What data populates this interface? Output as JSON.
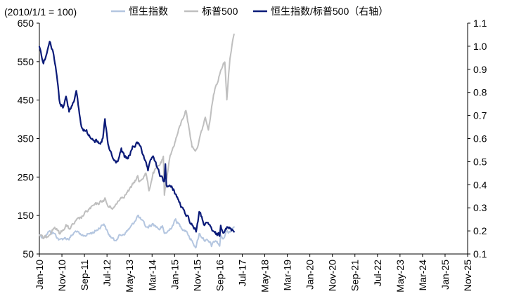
{
  "chart_data": {
    "type": "line",
    "subtitle": "(2010/1/1 = 100)",
    "x_categories": [
      "Jan-10",
      "Nov-10",
      "Sep-11",
      "Jul-12",
      "May-13",
      "Mar-14",
      "Jan-15",
      "Nov-15",
      "Sep-16",
      "Jul-17",
      "May-18",
      "Mar-19",
      "Jan-20",
      "Nov-20",
      "Sep-21",
      "Jul-22",
      "May-23",
      "Mar-24",
      "Jan-25",
      "Nov-25"
    ],
    "y_left": {
      "ticks": [
        50,
        150,
        250,
        350,
        450,
        550,
        650
      ],
      "range": [
        50,
        650
      ]
    },
    "y_right": {
      "ticks": [
        0.1,
        0.2,
        0.3,
        0.4,
        0.5,
        0.6,
        0.7,
        0.8,
        0.9,
        1.0,
        1.1
      ],
      "range": [
        0.1,
        1.1
      ]
    },
    "legend": {
      "position": "top",
      "entries": [
        "恒生指数",
        "标普500",
        "恒生指数/标普500（右轴）"
      ]
    },
    "colors": {
      "hsi": "#b4c6e0",
      "spx": "#bfbfbf",
      "ratio": "#0a1a78"
    },
    "series": [
      {
        "name": "恒生指数",
        "axis": "left",
        "points": [
          [
            "2010-01",
            100
          ],
          [
            "2010-05",
            93
          ],
          [
            "2010-10",
            108
          ],
          [
            "2011-03",
            105
          ],
          [
            "2011-09",
            85
          ],
          [
            "2012-01",
            92
          ],
          [
            "2012-06",
            90
          ],
          [
            "2013-01",
            110
          ],
          [
            "2013-06",
            95
          ],
          [
            "2014-01",
            102
          ],
          [
            "2014-06",
            107
          ],
          [
            "2014-09",
            112
          ],
          [
            "2015-04",
            130
          ],
          [
            "2015-08",
            103
          ],
          [
            "2016-02",
            85
          ],
          [
            "2016-06",
            95
          ],
          [
            "2017-01",
            105
          ],
          [
            "2017-07",
            122
          ],
          [
            "2018-01",
            150
          ],
          [
            "2018-10",
            118
          ],
          [
            "2019-04",
            128
          ],
          [
            "2019-10",
            115
          ],
          [
            "2020-01",
            120
          ],
          [
            "2020-03",
            102
          ],
          [
            "2020-08",
            112
          ],
          [
            "2021-02",
            139
          ],
          [
            "2021-07",
            120
          ],
          [
            "2022-01",
            110
          ],
          [
            "2022-03",
            95
          ],
          [
            "2022-10",
            68
          ],
          [
            "2023-01",
            103
          ],
          [
            "2023-06",
            88
          ],
          [
            "2023-12",
            77
          ],
          [
            "2024-01",
            72
          ],
          [
            "2024-05",
            85
          ],
          [
            "2024-09",
            72
          ],
          [
            "2024-10",
            97
          ],
          [
            "2025-01",
            88
          ],
          [
            "2025-03",
            110
          ],
          [
            "2025-06",
            107
          ],
          [
            "2025-11",
            122
          ]
        ]
      },
      {
        "name": "标普500",
        "axis": "left",
        "points": [
          [
            "2010-01",
            100
          ],
          [
            "2010-05",
            90
          ],
          [
            "2010-08",
            95
          ],
          [
            "2011-04",
            120
          ],
          [
            "2011-09",
            102
          ],
          [
            "2012-03",
            125
          ],
          [
            "2012-06",
            115
          ],
          [
            "2013-01",
            135
          ],
          [
            "2013-06",
            145
          ],
          [
            "2014-01",
            165
          ],
          [
            "2014-06",
            175
          ],
          [
            "2015-01",
            185
          ],
          [
            "2015-05",
            193
          ],
          [
            "2015-08",
            173
          ],
          [
            "2016-02",
            170
          ],
          [
            "2016-07",
            193
          ],
          [
            "2017-01",
            205
          ],
          [
            "2017-06",
            220
          ],
          [
            "2018-01",
            252
          ],
          [
            "2018-02",
            236
          ],
          [
            "2018-09",
            260
          ],
          [
            "2018-12",
            215
          ],
          [
            "2019-04",
            260
          ],
          [
            "2019-12",
            288
          ],
          [
            "2020-02",
            300
          ],
          [
            "2020-03",
            200
          ],
          [
            "2020-08",
            300
          ],
          [
            "2020-12",
            330
          ],
          [
            "2021-06",
            380
          ],
          [
            "2021-12",
            425
          ],
          [
            "2022-06",
            330
          ],
          [
            "2022-10",
            320
          ],
          [
            "2023-02",
            355
          ],
          [
            "2023-07",
            405
          ],
          [
            "2023-10",
            370
          ],
          [
            "2024-03",
            465
          ],
          [
            "2024-07",
            500
          ],
          [
            "2024-12",
            545
          ],
          [
            "2025-02",
            548
          ],
          [
            "2025-04",
            455
          ],
          [
            "2025-07",
            560
          ],
          [
            "2025-11",
            625
          ]
        ]
      },
      {
        "name": "恒生指数/标普500（右轴）",
        "axis": "right",
        "points": [
          [
            "2010-01",
            1.0
          ],
          [
            "2010-05",
            0.93
          ],
          [
            "2010-09",
            0.98
          ],
          [
            "2010-11",
            1.03
          ],
          [
            "2011-03",
            0.96
          ],
          [
            "2011-06",
            0.87
          ],
          [
            "2011-09",
            0.75
          ],
          [
            "2011-12",
            0.74
          ],
          [
            "2012-03",
            0.78
          ],
          [
            "2012-06",
            0.72
          ],
          [
            "2012-09",
            0.75
          ],
          [
            "2013-01",
            0.8
          ],
          [
            "2013-06",
            0.65
          ],
          [
            "2014-01",
            0.62
          ],
          [
            "2014-06",
            0.6
          ],
          [
            "2014-12",
            0.57
          ],
          [
            "2015-03",
            0.6
          ],
          [
            "2015-05",
            0.68
          ],
          [
            "2015-08",
            0.57
          ],
          [
            "2016-02",
            0.5
          ],
          [
            "2016-05",
            0.5
          ],
          [
            "2016-09",
            0.55
          ],
          [
            "2016-12",
            0.52
          ],
          [
            "2017-03",
            0.51
          ],
          [
            "2017-08",
            0.56
          ],
          [
            "2018-01",
            0.58
          ],
          [
            "2018-04",
            0.57
          ],
          [
            "2018-08",
            0.5
          ],
          [
            "2018-11",
            0.46
          ],
          [
            "2019-04",
            0.53
          ],
          [
            "2019-08",
            0.47
          ],
          [
            "2019-12",
            0.43
          ],
          [
            "2020-03",
            0.41
          ],
          [
            "2020-04",
            0.49
          ],
          [
            "2020-05",
            0.4
          ],
          [
            "2020-12",
            0.38
          ],
          [
            "2021-03",
            0.35
          ],
          [
            "2021-09",
            0.29
          ],
          [
            "2022-01",
            0.27
          ],
          [
            "2022-03",
            0.25
          ],
          [
            "2022-10",
            0.2
          ],
          [
            "2023-01",
            0.28
          ],
          [
            "2023-06",
            0.23
          ],
          [
            "2023-12",
            0.22
          ],
          [
            "2024-03",
            0.19
          ],
          [
            "2024-09",
            0.18
          ],
          [
            "2024-10",
            0.22
          ],
          [
            "2025-01",
            0.2
          ],
          [
            "2025-03",
            0.22
          ],
          [
            "2025-06",
            0.21
          ],
          [
            "2025-11",
            0.2
          ]
        ]
      }
    ]
  }
}
